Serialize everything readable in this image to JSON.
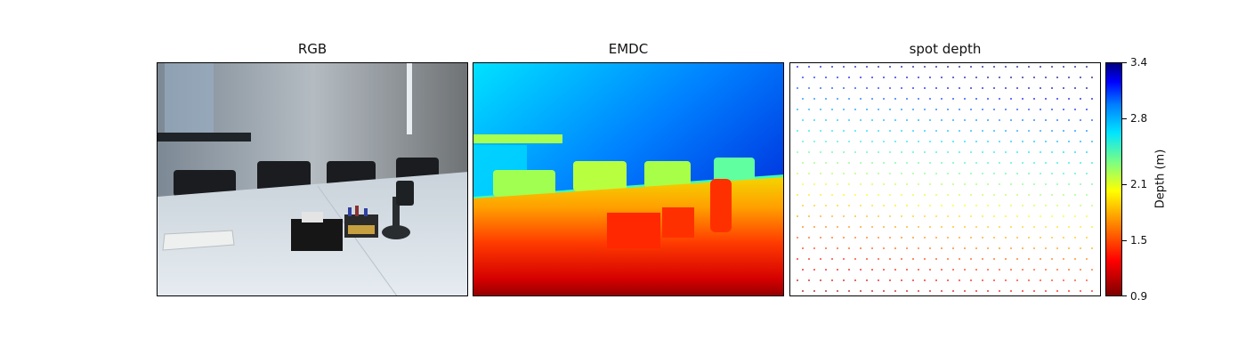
{
  "chart_data": [
    {
      "type": "image",
      "title": "RGB",
      "description_elements": [
        "wall",
        "window",
        "chairs",
        "table",
        "tissue-box",
        "pen-holder",
        "robot-lamp",
        "paper"
      ]
    },
    {
      "type": "heatmap",
      "title": "EMDC",
      "colormap": "jet_r"
    },
    {
      "type": "scatter",
      "title": "spot depth",
      "colormap": "jet_r"
    }
  ],
  "colorbar": {
    "label": "Depth (m)",
    "range": [
      0.9,
      3.4
    ],
    "ticks": [
      "0.9",
      "1.5",
      "2.1",
      "2.8",
      "3.4"
    ],
    "tick_values": [
      0.9,
      1.5,
      2.1,
      2.8,
      3.4
    ]
  }
}
